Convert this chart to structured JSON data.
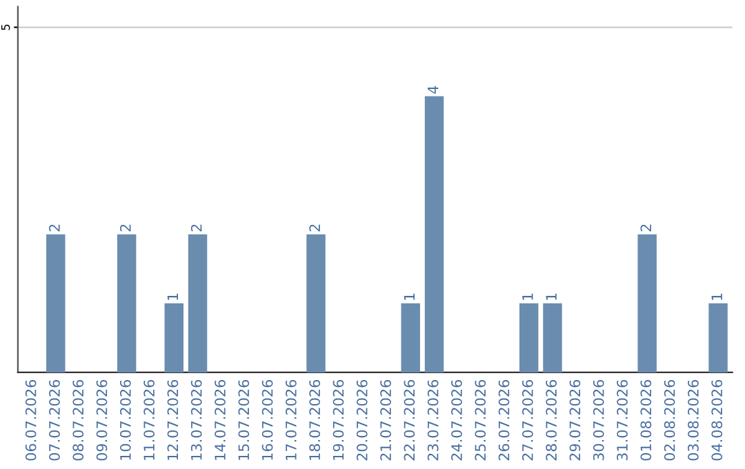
{
  "chart_data": {
    "type": "bar",
    "categories": [
      "06.07.2026",
      "07.07.2026",
      "08.07.2026",
      "09.07.2026",
      "10.07.2026",
      "11.07.2026",
      "12.07.2026",
      "13.07.2026",
      "14.07.2026",
      "15.07.2026",
      "16.07.2026",
      "17.07.2026",
      "18.07.2026",
      "19.07.2026",
      "20.07.2026",
      "21.07.2026",
      "22.07.2026",
      "23.07.2026",
      "24.07.2026",
      "25.07.2026",
      "26.07.2026",
      "27.07.2026",
      "28.07.2026",
      "29.07.2026",
      "30.07.2026",
      "31.07.2026",
      "01.08.2026",
      "02.08.2026",
      "03.08.2026",
      "04.08.2026"
    ],
    "values": [
      0,
      2,
      0,
      0,
      2,
      0,
      1,
      2,
      0,
      0,
      0,
      0,
      2,
      0,
      0,
      0,
      1,
      4,
      0,
      0,
      0,
      1,
      1,
      0,
      0,
      0,
      2,
      0,
      0,
      1
    ],
    "value_labels": [
      null,
      "2",
      null,
      null,
      "2",
      null,
      "1",
      "2",
      null,
      null,
      null,
      null,
      "2",
      null,
      null,
      null,
      "1",
      "4",
      null,
      null,
      null,
      "1",
      "1",
      null,
      null,
      null,
      "2",
      null,
      null,
      "1"
    ],
    "color": "#6a8caf",
    "ylim": [
      0,
      5.3
    ],
    "yticks": [
      5
    ],
    "grid": "y"
  }
}
